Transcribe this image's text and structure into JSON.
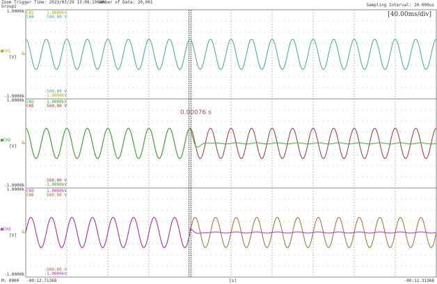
{
  "header": {
    "trigger_time": "Zoom Trigger Time: 2023/03/29 13:08:19.40",
    "data_count": "Number of Data: 20,001",
    "group": "Group1",
    "sampling": "Sampling Interval:  20.000us",
    "timebase": "[40.00ms/div]"
  },
  "cursor_readout": "0.00076 s",
  "footer": {
    "marker": "M: 0000",
    "x_start": "-00:12.71368",
    "x_unit": "[s]",
    "x_end": "-00:12.31368"
  },
  "chart_data": [
    {
      "type": "line",
      "panel": "CH1",
      "axis_label": "CH1",
      "unit": "[V]",
      "ytop": "1.0000k",
      "ybottom": "-1.0000k",
      "zero_label": "0",
      "ylim": [
        -1000,
        1000
      ],
      "grid": true,
      "legend": [
        {
          "ch": "CH1",
          "scale": "1.0000kV",
          "neg": "-1.0000kV",
          "color": "#a8a800"
        },
        {
          "ch": "CH4",
          "scale": "500.00 V",
          "neg": "-500.00 V",
          "color": "#3aa7a0"
        }
      ],
      "series": [
        {
          "name": "CH4",
          "color": "#3aa7a0",
          "kind": "sine",
          "frequency_hz": 50,
          "amplitude": 340
        }
      ]
    },
    {
      "type": "line",
      "panel": "CH2",
      "axis_label": "CH2",
      "unit": "[V]",
      "ytop": "1.0000k",
      "ybottom": "-1.0000k",
      "zero_label": "0",
      "ylim": [
        -1000,
        1000
      ],
      "grid": true,
      "legend": [
        {
          "ch": "CH2",
          "scale": "1.0000kV",
          "neg": "-1.0000kV",
          "color": "#30a030"
        },
        {
          "ch": "CH5",
          "scale": "500.00 V",
          "neg": "-500.00 V",
          "color": "#a03030"
        }
      ],
      "series": [
        {
          "name": "CH5",
          "color": "#a03030",
          "kind": "sine",
          "frequency_hz": 50,
          "amplitude": 340
        },
        {
          "name": "CH2",
          "color": "#30b030",
          "kind": "damped_after_trigger",
          "frequency_hz": 50,
          "amplitude": 340
        }
      ]
    },
    {
      "type": "line",
      "panel": "CH3",
      "axis_label": "CH3",
      "unit": "[V]",
      "ytop": "1.0000k",
      "ybottom": "-1.0000k",
      "zero_label": "0",
      "ylim": [
        -1000,
        1000
      ],
      "grid": true,
      "legend": [
        {
          "ch": "CH3",
          "scale": "1.0000kV",
          "neg": "-1.0000kV",
          "color": "#b030b0"
        },
        {
          "ch": "CH6",
          "scale": "500.00 V",
          "neg": "-500.00 V",
          "color": "#a06a30"
        }
      ],
      "series": [
        {
          "name": "CH6",
          "color": "#a06a30",
          "kind": "sine",
          "frequency_hz": 50,
          "amplitude": 340
        },
        {
          "name": "CH3",
          "color": "#b030c0",
          "kind": "damped_after_trigger",
          "frequency_hz": 50,
          "amplitude": 340
        }
      ]
    }
  ]
}
